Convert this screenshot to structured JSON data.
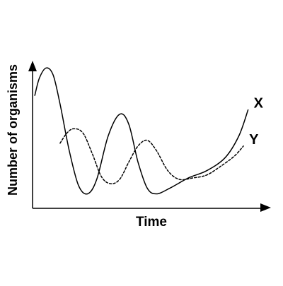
{
  "chart_data": {
    "type": "line",
    "title": "",
    "xlabel": "Time",
    "ylabel": "Number of organisms",
    "ticks": "none",
    "grid": false,
    "legend": "none",
    "axis_color": "#000000",
    "series": [
      {
        "name": "X",
        "line_style": "solid",
        "color": "#000000",
        "points": [
          [
            0.01,
            0.78
          ],
          [
            0.03,
            0.9
          ],
          [
            0.06,
            0.97
          ],
          [
            0.09,
            0.92
          ],
          [
            0.12,
            0.72
          ],
          [
            0.16,
            0.4
          ],
          [
            0.2,
            0.16
          ],
          [
            0.24,
            0.1
          ],
          [
            0.28,
            0.2
          ],
          [
            0.33,
            0.5
          ],
          [
            0.38,
            0.65
          ],
          [
            0.42,
            0.58
          ],
          [
            0.46,
            0.32
          ],
          [
            0.5,
            0.14
          ],
          [
            0.54,
            0.1
          ],
          [
            0.6,
            0.14
          ],
          [
            0.68,
            0.21
          ],
          [
            0.76,
            0.26
          ],
          [
            0.84,
            0.35
          ],
          [
            0.9,
            0.5
          ],
          [
            0.94,
            0.68
          ]
        ]
      },
      {
        "name": "Y",
        "line_style": "dashed",
        "color": "#000000",
        "points": [
          [
            0.12,
            0.45
          ],
          [
            0.15,
            0.52
          ],
          [
            0.18,
            0.55
          ],
          [
            0.22,
            0.52
          ],
          [
            0.26,
            0.38
          ],
          [
            0.3,
            0.22
          ],
          [
            0.34,
            0.17
          ],
          [
            0.38,
            0.2
          ],
          [
            0.42,
            0.32
          ],
          [
            0.46,
            0.43
          ],
          [
            0.5,
            0.47
          ],
          [
            0.54,
            0.4
          ],
          [
            0.59,
            0.26
          ],
          [
            0.64,
            0.2
          ],
          [
            0.7,
            0.21
          ],
          [
            0.76,
            0.23
          ],
          [
            0.82,
            0.29
          ],
          [
            0.88,
            0.36
          ],
          [
            0.92,
            0.43
          ]
        ]
      }
    ]
  }
}
